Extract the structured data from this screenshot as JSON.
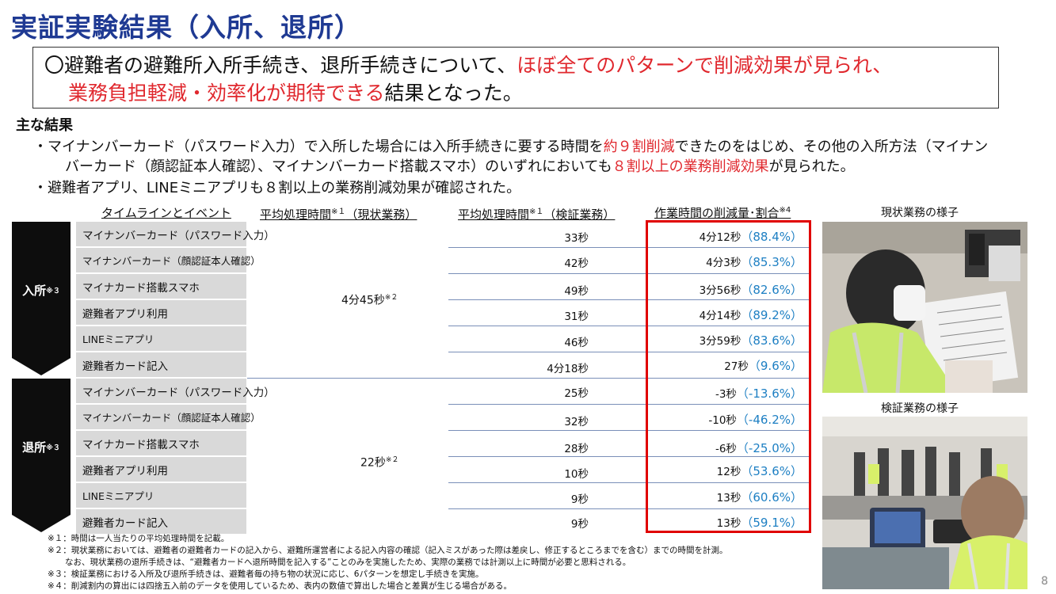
{
  "title": "実証実験結果（入所、退所）",
  "summary": {
    "line1_pre": "〇避難者の避難所入所手続き、退所手続きについて、",
    "line1_red": "ほぼ全てのパターンで削減効果が見られ、",
    "line2_red": "業務負担軽減・効率化が期待できる",
    "line2_post": "結果となった。"
  },
  "results": {
    "heading": "主な結果",
    "b1_pre": "・マイナンバーカード（パスワード入力）で入所した場合には入所手続きに要する時間を",
    "b1_red1": "約９割削減",
    "b1_mid": "できたのをはじめ、その他の入所方法（マイナン",
    "b1_line2_pre": "バーカード（顔認証本人確認）、マイナンバーカード搭載スマホ）のいずれにおいても",
    "b1_red2": "８割以上の業務削減効果",
    "b1_line2_post": "が見られた。",
    "b2": "・避難者アプリ、LINEミニアプリも８割以上の業務削減効果が確認された。"
  },
  "table": {
    "headers": {
      "timeline": "タイムラインとイベント",
      "avg_current": "平均処理時間",
      "avg_current_sup": "※１",
      "avg_current_tail": "（現状業務）",
      "avg_test": "平均処理時間",
      "avg_test_sup": "※１",
      "avg_test_tail": "（検証業務）",
      "reduction": "作業時間の削減量･割合",
      "reduction_sup": "※4"
    },
    "entry": {
      "label": "入所",
      "label_sup": "※３",
      "current_avg": "4分45秒",
      "current_avg_sup": "※２",
      "rows": [
        {
          "event": "マイナンバーカード（パスワード入力）",
          "test": "33秒",
          "reduction": "4分12秒",
          "pct": "（88.4%）"
        },
        {
          "event": "マイナンバーカード（顔認証本人確認）",
          "test": "42秒",
          "reduction": "4分3秒",
          "pct": "（85.3%）"
        },
        {
          "event": "マイナカード搭載スマホ",
          "test": "49秒",
          "reduction": "3分56秒",
          "pct": "（82.6%）"
        },
        {
          "event": "避難者アプリ利用",
          "test": "31秒",
          "reduction": "4分14秒",
          "pct": "（89.2%）"
        },
        {
          "event": "LINEミニアプリ",
          "test": "46秒",
          "reduction": "3分59秒",
          "pct": "（83.6%）"
        },
        {
          "event": "避難者カード記入",
          "test": "4分18秒",
          "reduction": "27秒",
          "pct": "（9.6%）"
        }
      ]
    },
    "exit": {
      "label": "退所",
      "label_sup": "※３",
      "current_avg": "22秒",
      "current_avg_sup": "※２",
      "rows": [
        {
          "event": "マイナンバーカード（パスワード入力）",
          "test": "25秒",
          "reduction": "-3秒",
          "pct": "（-13.6%）"
        },
        {
          "event": "マイナンバーカード（顔認証本人確認）",
          "test": "32秒",
          "reduction": "-10秒",
          "pct": "（-46.2%）"
        },
        {
          "event": "マイナカード搭載スマホ",
          "test": "28秒",
          "reduction": "-6秒",
          "pct": "（-25.0%）"
        },
        {
          "event": "避難者アプリ利用",
          "test": "10秒",
          "reduction": "12秒",
          "pct": "（53.6%）"
        },
        {
          "event": "LINEミニアプリ",
          "test": "9秒",
          "reduction": "13秒",
          "pct": "（60.6%）"
        },
        {
          "event": "避難者カード記入",
          "test": "9秒",
          "reduction": "13秒",
          "pct": "（59.1%）"
        }
      ]
    }
  },
  "notes": {
    "n1": "※１：時間は一人当たりの平均処理時間を記載。",
    "n2a": "※２：現状業務においては、避難者の避難者カードの記入から、避難所運営者による記入内容の確認（記入ミスがあった際は差戻し、修正するところまでを含む）までの時間を計測。",
    "n2b": "なお、現状業務の退所手続きは、“避難者カードへ退所時間を記入する”ことのみを実施したため、実際の業務では計測以上に時間が必要と思料される。",
    "n3": "※３：検証業務における入所及び退所手続きは、避難者毎の持ち物の状況に応じ、6パターンを想定し手続きを実施。",
    "n4": "※４：削減割内の算出には四捨五入前のデータを使用しているため、表内の数値で算出した場合と差異が生じる場合がある。"
  },
  "photos": {
    "current_caption": "現状業務の様子",
    "test_caption": "検証業務の様子"
  },
  "page_number": "8"
}
